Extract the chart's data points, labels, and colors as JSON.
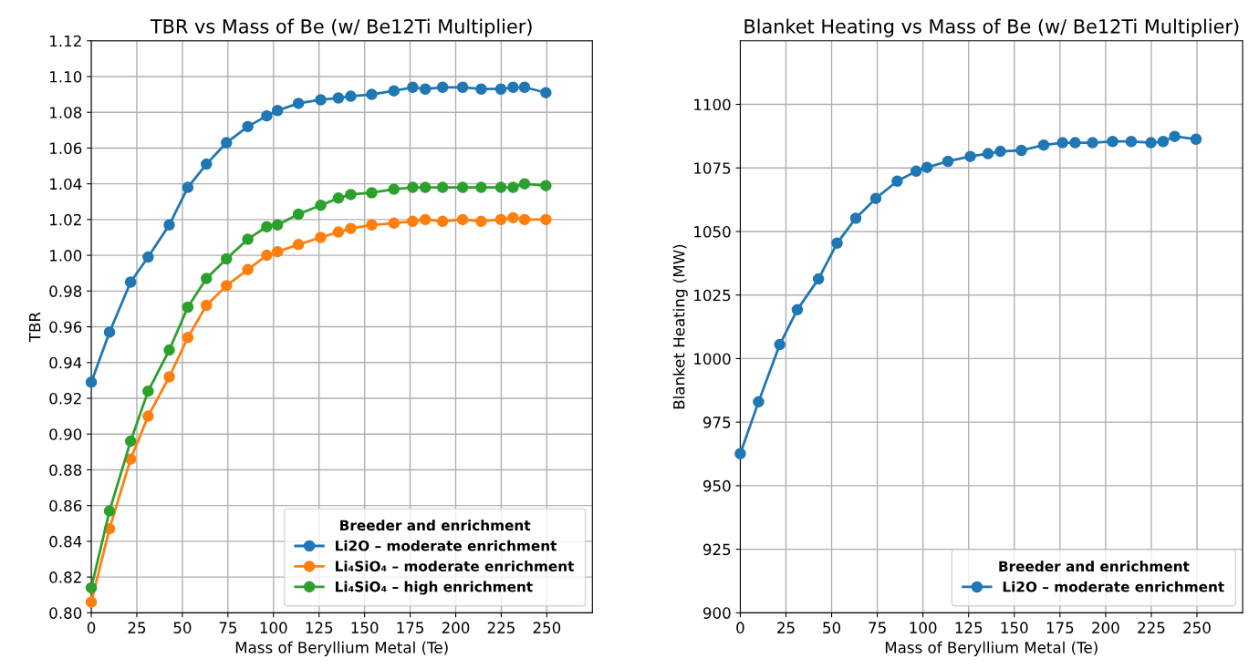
{
  "chart_data": [
    {
      "type": "line",
      "title": "TBR vs Mass of Be (w/ Be12Ti Multiplier)",
      "xlabel": "Mass of Beryllium Metal (Te)",
      "ylabel": "TBR",
      "x": [
        0,
        10,
        21.6,
        31.2,
        42.8,
        53,
        63.2,
        74.2,
        85.9,
        96.3,
        102.2,
        113.7,
        125.9,
        135.6,
        142.4,
        153.9,
        166.1,
        176.4,
        183.3,
        192.8,
        203.8,
        214,
        224.8,
        231.5,
        237.8,
        249.5
      ],
      "series": [
        {
          "name": "Li2O – moderate enrichment",
          "color": "#1f77b4",
          "values": [
            0.929,
            0.957,
            0.985,
            0.999,
            1.017,
            1.038,
            1.051,
            1.063,
            1.072,
            1.078,
            1.081,
            1.085,
            1.087,
            1.088,
            1.089,
            1.09,
            1.092,
            1.094,
            1.093,
            1.094,
            1.094,
            1.093,
            1.093,
            1.094,
            1.094,
            1.091
          ]
        },
        {
          "name": "Li₄SiO₄ – moderate enrichment",
          "color": "#ff7f0e",
          "values": [
            0.806,
            0.847,
            0.886,
            0.91,
            0.932,
            0.954,
            0.972,
            0.983,
            0.992,
            1.0,
            1.002,
            1.006,
            1.01,
            1.013,
            1.015,
            1.017,
            1.018,
            1.019,
            1.02,
            1.019,
            1.02,
            1.019,
            1.02,
            1.021,
            1.02,
            1.02
          ]
        },
        {
          "name": "Li₄SiO₄ – high enrichment",
          "color": "#2ca02c",
          "values": [
            0.814,
            0.857,
            0.896,
            0.924,
            0.947,
            0.971,
            0.987,
            0.998,
            1.009,
            1.016,
            1.017,
            1.023,
            1.028,
            1.032,
            1.034,
            1.035,
            1.037,
            1.038,
            1.038,
            1.038,
            1.038,
            1.038,
            1.038,
            1.038,
            1.04,
            1.039
          ]
        }
      ],
      "xlim": [
        0,
        275
      ],
      "ylim": [
        0.8,
        1.12
      ],
      "xticks": [
        0,
        25,
        50,
        75,
        100,
        125,
        150,
        175,
        200,
        225,
        250
      ],
      "yticks": [
        {
          "value": 0.8,
          "label": "0.80"
        },
        {
          "value": 0.82,
          "label": "0.82"
        },
        {
          "value": 0.84,
          "label": "0.84"
        },
        {
          "value": 0.86,
          "label": "0.86"
        },
        {
          "value": 0.88,
          "label": "0.88"
        },
        {
          "value": 0.9,
          "label": "0.90"
        },
        {
          "value": 0.92,
          "label": "0.92"
        },
        {
          "value": 0.94,
          "label": "0.94"
        },
        {
          "value": 0.96,
          "label": "0.96"
        },
        {
          "value": 0.98,
          "label": "0.98"
        },
        {
          "value": 1.0,
          "label": "1.00"
        },
        {
          "value": 1.02,
          "label": "1.02"
        },
        {
          "value": 1.04,
          "label": "1.04"
        },
        {
          "value": 1.06,
          "label": "1.06"
        },
        {
          "value": 1.08,
          "label": "1.08"
        },
        {
          "value": 1.1,
          "label": "1.10"
        },
        {
          "value": 1.12,
          "label": "1.12"
        }
      ],
      "grid": true,
      "legend": "bottom right",
      "legend_title": "Breeder and enrichment",
      "marker": "circle"
    },
    {
      "type": "line",
      "title": "Blanket Heating vs Mass of Be (w/ Be12Ti Multiplier)",
      "xlabel": "Mass of Beryllium Metal (Te)",
      "ylabel": "Blanket Heating (MW)",
      "x": [
        0,
        10,
        21.6,
        31.2,
        42.8,
        53,
        63.2,
        74.2,
        85.9,
        96.3,
        102.2,
        113.7,
        125.9,
        135.6,
        142.4,
        153.9,
        166.1,
        176.4,
        183.3,
        192.8,
        203.8,
        214,
        224.8,
        231.5,
        237.8,
        249.5
      ],
      "series": [
        {
          "name": "Li2O – moderate enrichment",
          "color": "#1f77b4",
          "values": [
            962.6,
            983.0,
            1005.5,
            1019.2,
            1031.3,
            1045.4,
            1055.2,
            1063.0,
            1069.8,
            1073.7,
            1075.2,
            1077.6,
            1079.5,
            1080.6,
            1081.5,
            1081.9,
            1084.0,
            1084.9,
            1084.9,
            1084.9,
            1085.4,
            1085.4,
            1084.9,
            1085.4,
            1087.4,
            1086.3
          ]
        }
      ],
      "xlim": [
        0,
        275
      ],
      "ylim": [
        900,
        1125
      ],
      "xticks": [
        0,
        25,
        50,
        75,
        100,
        125,
        150,
        175,
        200,
        225,
        250
      ],
      "yticks": [
        900,
        925,
        950,
        975,
        1000,
        1025,
        1050,
        1075,
        1100
      ],
      "grid": true,
      "legend": "bottom right",
      "legend_title": "Breeder and enrichment",
      "marker": "circle"
    }
  ]
}
